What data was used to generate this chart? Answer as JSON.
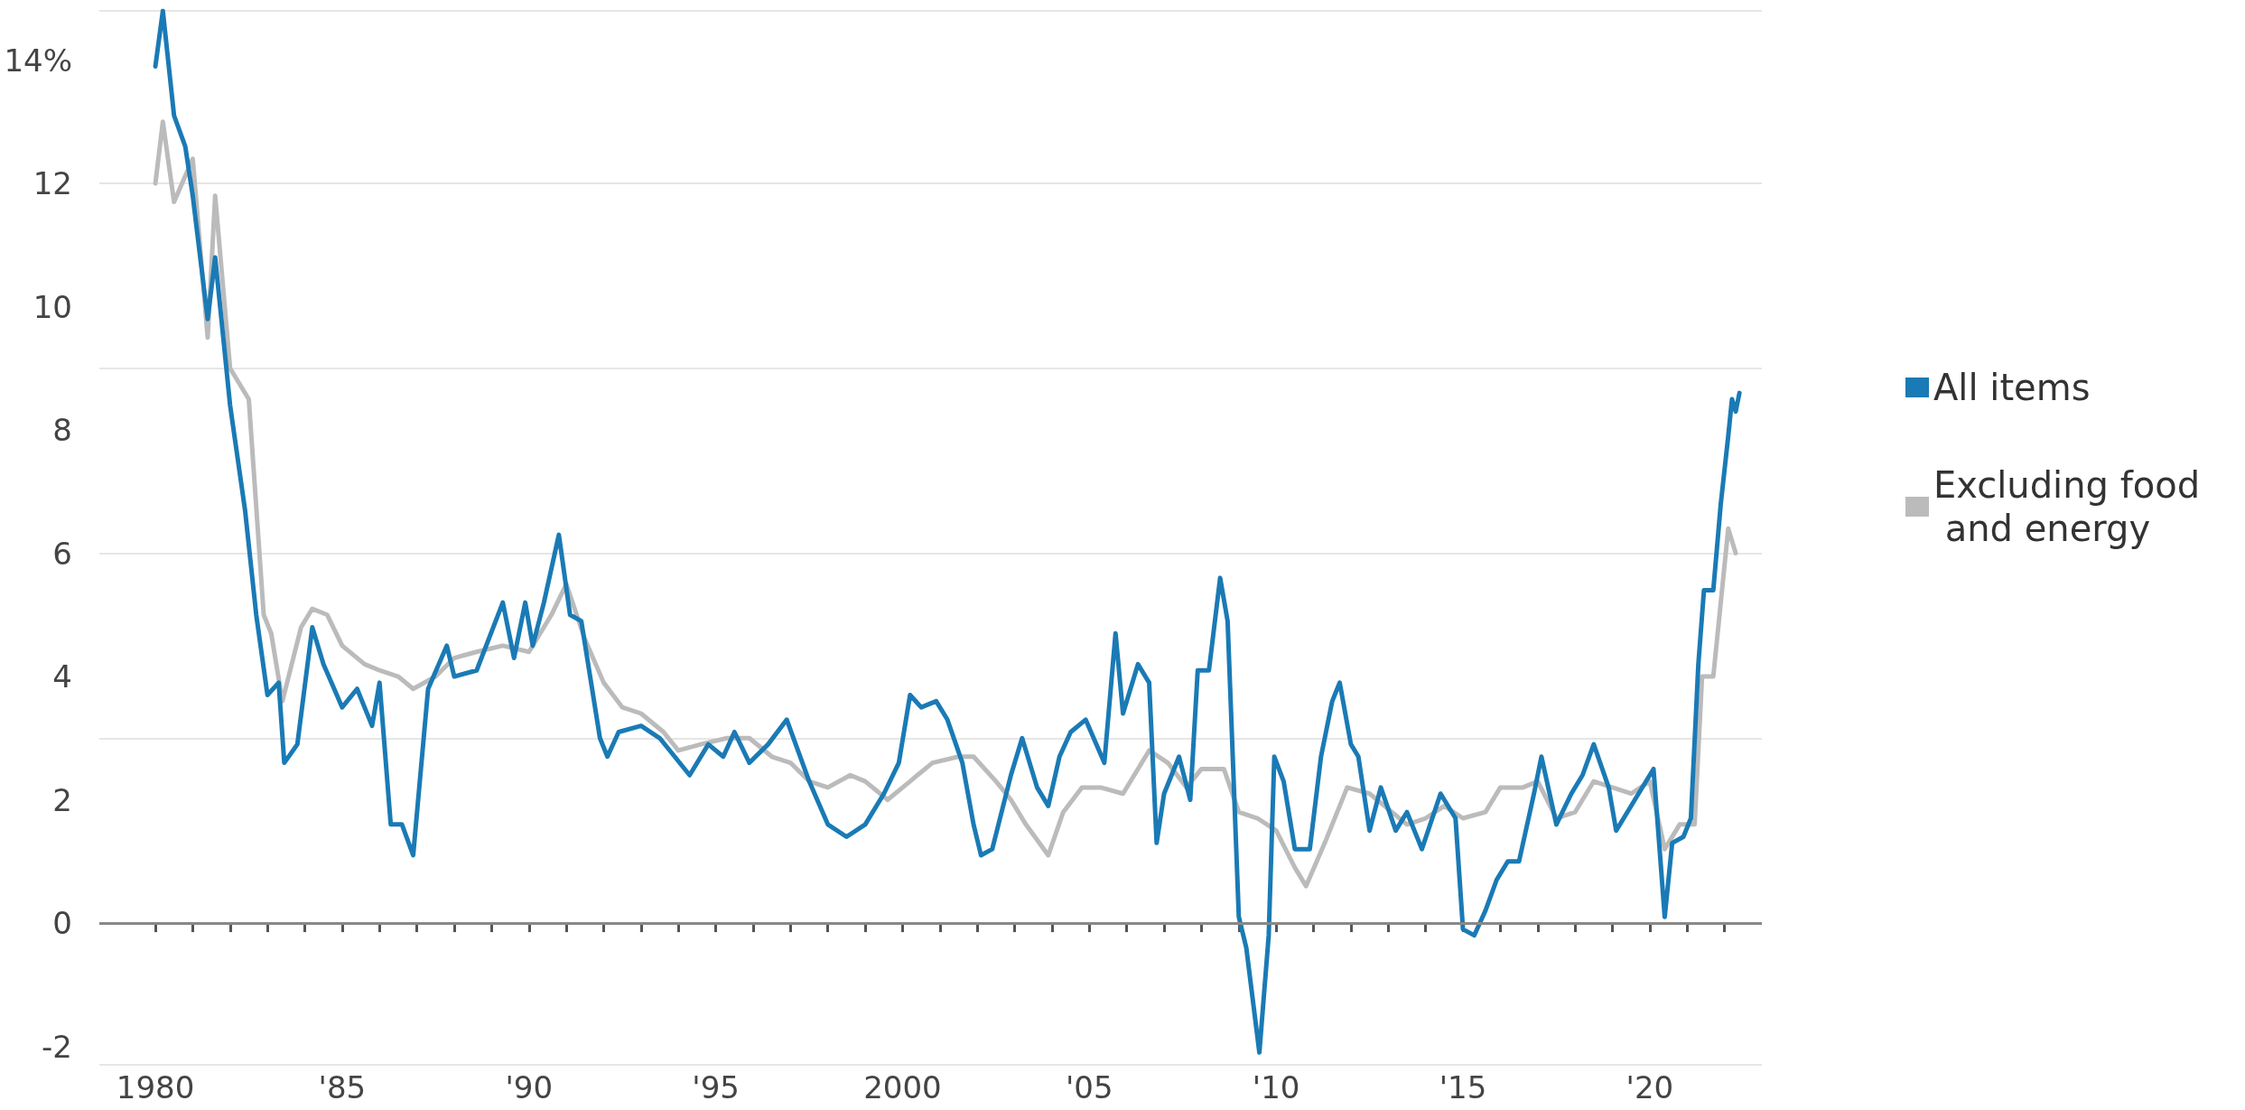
{
  "chart_data": {
    "type": "line",
    "xlim": [
      1978.5,
      2023
    ],
    "ylim": [
      -2.3,
      14.8
    ],
    "yticks": [
      -2,
      0,
      2,
      4,
      6,
      8,
      10,
      12,
      {
        "value": 14,
        "label": "14%"
      }
    ],
    "xticks": [
      1980,
      {
        "value": 1981,
        "label": null
      },
      {
        "value": 1982,
        "label": null
      },
      {
        "value": 1983,
        "label": null
      },
      {
        "value": 1984,
        "label": null
      },
      {
        "value": 1985,
        "label": "'85"
      },
      {
        "value": 1986,
        "label": null
      },
      {
        "value": 1987,
        "label": null
      },
      {
        "value": 1988,
        "label": null
      },
      {
        "value": 1989,
        "label": null
      },
      {
        "value": 1990,
        "label": "'90"
      },
      {
        "value": 1991,
        "label": null
      },
      {
        "value": 1992,
        "label": null
      },
      {
        "value": 1993,
        "label": null
      },
      {
        "value": 1994,
        "label": null
      },
      {
        "value": 1995,
        "label": "'95"
      },
      {
        "value": 1996,
        "label": null
      },
      {
        "value": 1997,
        "label": null
      },
      {
        "value": 1998,
        "label": null
      },
      {
        "value": 1999,
        "label": null
      },
      2000,
      {
        "value": 2001,
        "label": null
      },
      {
        "value": 2002,
        "label": null
      },
      {
        "value": 2003,
        "label": null
      },
      {
        "value": 2004,
        "label": null
      },
      {
        "value": 2005,
        "label": "'05"
      },
      {
        "value": 2006,
        "label": null
      },
      {
        "value": 2007,
        "label": null
      },
      {
        "value": 2008,
        "label": null
      },
      {
        "value": 2009,
        "label": null
      },
      {
        "value": 2010,
        "label": "'10"
      },
      {
        "value": 2011,
        "label": null
      },
      {
        "value": 2012,
        "label": null
      },
      {
        "value": 2013,
        "label": null
      },
      {
        "value": 2014,
        "label": null
      },
      {
        "value": 2015,
        "label": "'15"
      },
      {
        "value": 2016,
        "label": null
      },
      {
        "value": 2017,
        "label": null
      },
      {
        "value": 2018,
        "label": null
      },
      {
        "value": 2019,
        "label": null
      },
      {
        "value": 2020,
        "label": "'20"
      },
      {
        "value": 2021,
        "label": null
      },
      {
        "value": 2022,
        "label": null
      }
    ],
    "grid": "y",
    "legend": "right",
    "marker": "none",
    "line_style": "solid",
    "ref_lines": [
      {
        "axis": "y",
        "value": 0,
        "color": "#888888"
      }
    ],
    "series": [
      {
        "name": "Excluding food and energy",
        "color": "#bbbbbb",
        "x": [
          1980.0,
          1980.2,
          1980.5,
          1981.0,
          1981.4,
          1981.6,
          1982.0,
          1982.5,
          1982.9,
          1983.1,
          1983.4,
          1983.9,
          1984.2,
          1984.6,
          1985.0,
          1985.6,
          1986.0,
          1986.5,
          1986.9,
          1987.5,
          1988.0,
          1988.6,
          1989.3,
          1990.0,
          1990.6,
          1991.0,
          1991.5,
          1992.0,
          1992.5,
          1993.0,
          1993.6,
          1994.0,
          1994.6,
          1995.3,
          1995.9,
          1996.5,
          1997.0,
          1997.5,
          1998.0,
          1998.6,
          1999.0,
          1999.6,
          2000.2,
          2000.8,
          2001.5,
          2001.9,
          2002.5,
          2002.9,
          2003.3,
          2003.9,
          2004.3,
          2004.8,
          2005.3,
          2005.9,
          2006.6,
          2007.1,
          2007.6,
          2008.0,
          2008.6,
          2009.0,
          2009.5,
          2010.0,
          2010.5,
          2010.8,
          2011.3,
          2011.9,
          2012.5,
          2012.9,
          2013.5,
          2014.0,
          2014.5,
          2015.0,
          2015.6,
          2016.0,
          2016.6,
          2017.0,
          2017.5,
          2018.0,
          2018.5,
          2019.0,
          2019.5,
          2020.0,
          2020.4,
          2020.8,
          2021.2,
          2021.4,
          2021.7,
          2022.1,
          2022.3
        ],
        "values": [
          12.0,
          13.0,
          11.7,
          12.4,
          9.5,
          11.8,
          9.0,
          8.5,
          5.0,
          4.7,
          3.6,
          4.8,
          5.1,
          5.0,
          4.5,
          4.2,
          4.1,
          4.0,
          3.8,
          4.0,
          4.3,
          4.4,
          4.5,
          4.4,
          5.0,
          5.5,
          4.6,
          3.9,
          3.5,
          3.4,
          3.1,
          2.8,
          2.9,
          3.0,
          3.0,
          2.7,
          2.6,
          2.3,
          2.2,
          2.4,
          2.3,
          2.0,
          2.3,
          2.6,
          2.7,
          2.7,
          2.3,
          2.0,
          1.6,
          1.1,
          1.8,
          2.2,
          2.2,
          2.1,
          2.8,
          2.6,
          2.2,
          2.5,
          2.5,
          1.8,
          1.7,
          1.5,
          0.9,
          0.6,
          1.3,
          2.2,
          2.1,
          1.9,
          1.6,
          1.7,
          1.9,
          1.7,
          1.8,
          2.2,
          2.2,
          2.3,
          1.7,
          1.8,
          2.3,
          2.2,
          2.1,
          2.3,
          1.2,
          1.6,
          1.6,
          4.0,
          4.0,
          6.4,
          6.0
        ]
      },
      {
        "name": "All items",
        "color": "#1a7ab5",
        "x": [
          1980.0,
          1980.2,
          1980.5,
          1980.8,
          1981.0,
          1981.4,
          1981.6,
          1982.0,
          1982.4,
          1982.7,
          1983.0,
          1983.3,
          1983.45,
          1983.8,
          1984.2,
          1984.5,
          1985.0,
          1985.4,
          1985.8,
          1986.0,
          1986.3,
          1986.6,
          1986.9,
          1987.3,
          1987.8,
          1988.0,
          1988.6,
          1989.3,
          1989.6,
          1989.9,
          1990.1,
          1990.4,
          1990.8,
          1991.1,
          1991.4,
          1991.9,
          1992.1,
          1992.4,
          1993.0,
          1993.5,
          1993.9,
          1994.3,
          1994.8,
          1995.2,
          1995.5,
          1995.9,
          1996.4,
          1996.9,
          1997.5,
          1998.0,
          1998.5,
          1999.0,
          1999.5,
          1999.9,
          2000.2,
          2000.5,
          2000.9,
          2001.2,
          2001.6,
          2001.9,
          2002.1,
          2002.4,
          2002.9,
          2003.2,
          2003.6,
          2003.9,
          2004.2,
          2004.5,
          2004.9,
          2005.4,
          2005.7,
          2005.9,
          2006.3,
          2006.6,
          2006.8,
          2007.0,
          2007.4,
          2007.7,
          2007.9,
          2008.2,
          2008.5,
          2008.7,
          2009.0,
          2009.2,
          2009.55,
          2009.8,
          2009.95,
          2010.2,
          2010.5,
          2010.9,
          2011.2,
          2011.5,
          2011.7,
          2012.0,
          2012.2,
          2012.5,
          2012.8,
          2013.2,
          2013.5,
          2013.9,
          2014.4,
          2014.8,
          2015.0,
          2015.3,
          2015.6,
          2015.9,
          2016.2,
          2016.5,
          2016.9,
          2017.1,
          2017.5,
          2017.9,
          2018.2,
          2018.5,
          2018.9,
          2019.1,
          2019.4,
          2019.9,
          2020.1,
          2020.4,
          2020.6,
          2020.9,
          2021.1,
          2021.3,
          2021.45,
          2021.7,
          2021.9,
          2022.1,
          2022.2,
          2022.3,
          2022.4
        ],
        "values": [
          13.9,
          14.8,
          13.1,
          12.6,
          11.8,
          9.8,
          10.8,
          8.4,
          6.7,
          5.0,
          3.7,
          3.9,
          2.6,
          2.9,
          4.8,
          4.2,
          3.5,
          3.8,
          3.2,
          3.9,
          1.6,
          1.6,
          1.1,
          3.8,
          4.5,
          4.0,
          4.1,
          5.2,
          4.3,
          5.2,
          4.5,
          5.2,
          6.3,
          5.0,
          4.9,
          3.0,
          2.7,
          3.1,
          3.2,
          3.0,
          2.7,
          2.4,
          2.9,
          2.7,
          3.1,
          2.6,
          2.9,
          3.3,
          2.3,
          1.6,
          1.4,
          1.6,
          2.1,
          2.6,
          3.7,
          3.5,
          3.6,
          3.3,
          2.6,
          1.6,
          1.1,
          1.2,
          2.4,
          3.0,
          2.2,
          1.9,
          2.7,
          3.1,
          3.3,
          2.6,
          4.7,
          3.4,
          4.2,
          3.9,
          1.3,
          2.1,
          2.7,
          2.0,
          4.1,
          4.1,
          5.6,
          4.9,
          0.1,
          -0.4,
          -2.1,
          -0.2,
          2.7,
          2.3,
          1.2,
          1.2,
          2.7,
          3.6,
          3.9,
          2.9,
          2.7,
          1.5,
          2.2,
          1.5,
          1.8,
          1.2,
          2.1,
          1.7,
          -0.1,
          -0.2,
          0.2,
          0.7,
          1.0,
          1.0,
          2.1,
          2.7,
          1.6,
          2.1,
          2.4,
          2.9,
          2.2,
          1.5,
          1.8,
          2.3,
          2.5,
          0.1,
          1.3,
          1.4,
          1.7,
          4.2,
          5.4,
          5.4,
          6.8,
          7.9,
          8.5,
          8.3,
          8.6
        ]
      }
    ]
  }
}
